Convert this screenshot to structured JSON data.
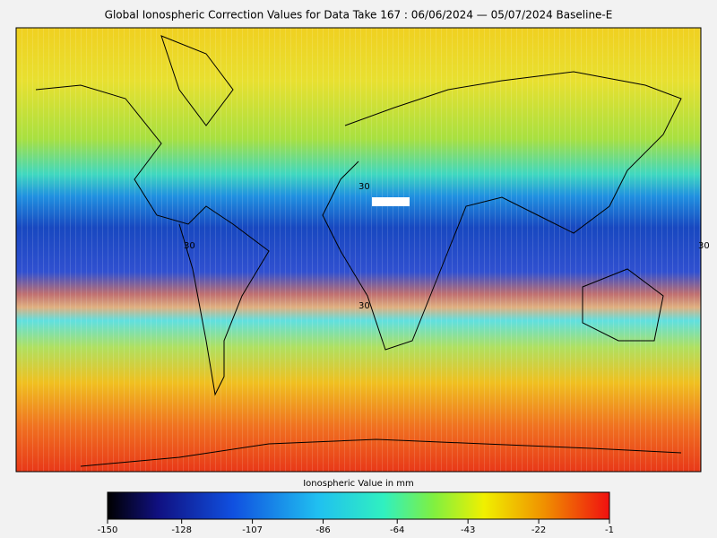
{
  "title": "Global Ionospheric Correction Values for Data Take 167 : 06/06/2024 — 05/07/2024 Baseline-E",
  "map": {
    "grid_labels": [
      "30",
      "30",
      "30",
      "30"
    ]
  },
  "colorbar": {
    "label": "Ionospheric Value in mm",
    "range": [
      -150,
      -1
    ],
    "ticks": [
      -150,
      -128,
      -107,
      -86,
      -64,
      -43,
      -22,
      -1
    ]
  }
}
